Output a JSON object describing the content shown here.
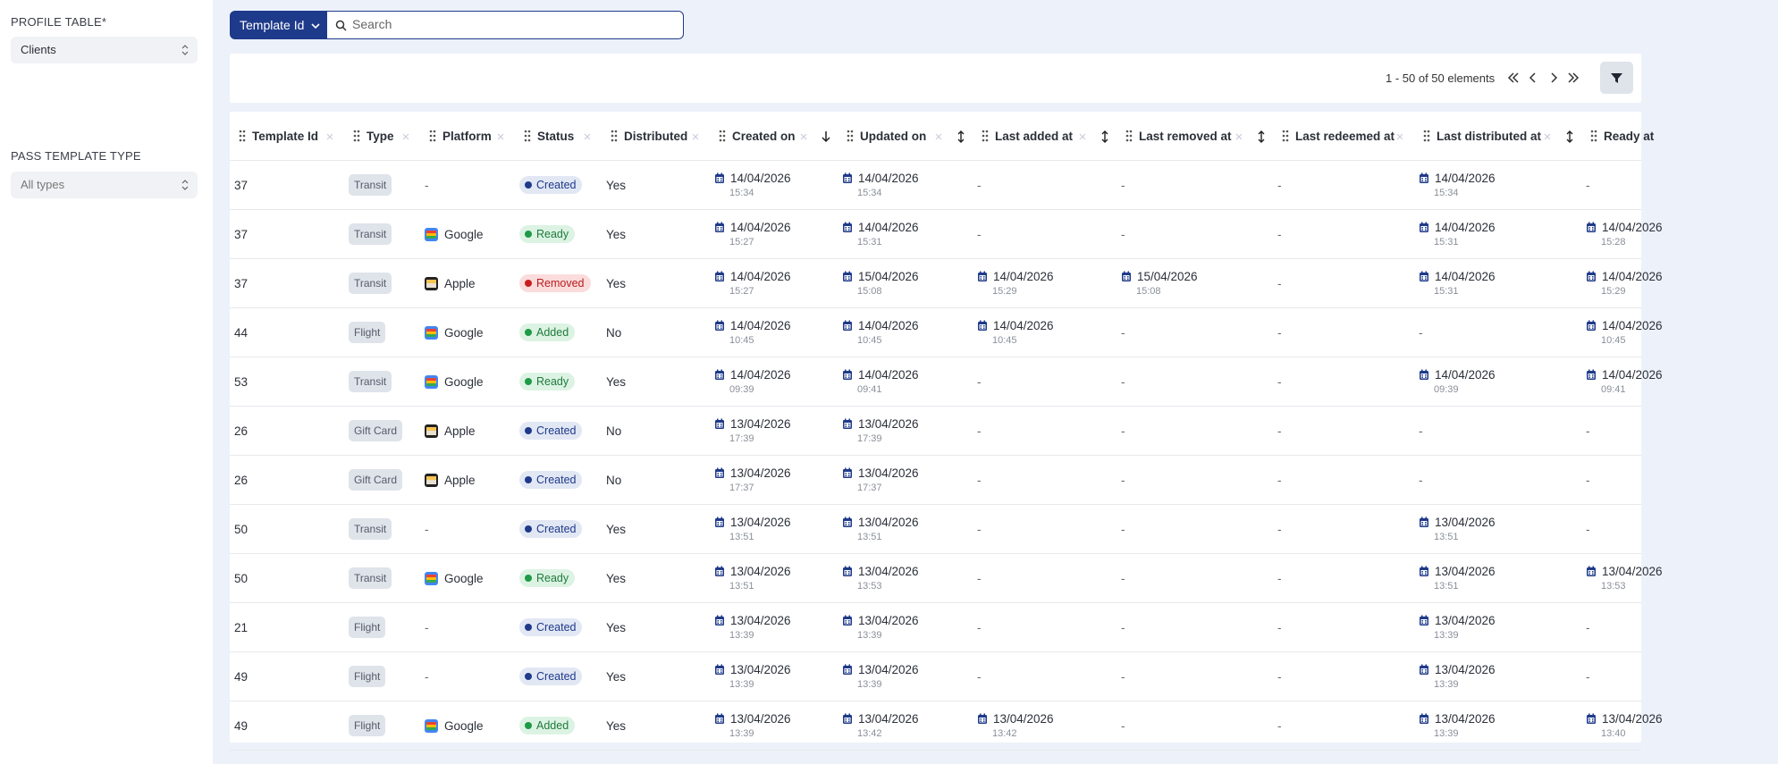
{
  "sidebar": {
    "profile_label": "PROFILE TABLE*",
    "profile_value": "Clients",
    "type_label": "PASS TEMPLATE TYPE",
    "type_value": "All types"
  },
  "toolbar": {
    "field": "Template Id",
    "search_placeholder": "Search",
    "pagination": "1 - 50 of 50 elements"
  },
  "table": {
    "columns": [
      "Template Id",
      "Type",
      "Platform",
      "Status",
      "Distributed",
      "Created on",
      "Updated on",
      "Last added at",
      "Last removed at",
      "Last redeemed at",
      "Last distributed at",
      "Ready at"
    ],
    "rows": [
      [
        "37",
        "Transit",
        "-",
        "Created",
        "Yes",
        {
          "date": "14/04/2026",
          "time": "15:34"
        },
        {
          "date": "14/04/2026",
          "time": "15:34"
        },
        "-",
        "-",
        "-",
        {
          "date": "14/04/2026",
          "time": "15:34"
        },
        "-"
      ],
      [
        "37",
        "Transit",
        "Google",
        "Ready",
        "Yes",
        {
          "date": "14/04/2026",
          "time": "15:27"
        },
        {
          "date": "14/04/2026",
          "time": "15:31"
        },
        "-",
        "-",
        "-",
        {
          "date": "14/04/2026",
          "time": "15:31"
        },
        {
          "date": "14/04/2026",
          "time": "15:28"
        }
      ],
      [
        "37",
        "Transit",
        "Apple",
        "Removed",
        "Yes",
        {
          "date": "14/04/2026",
          "time": "15:27"
        },
        {
          "date": "15/04/2026",
          "time": "15:08"
        },
        {
          "date": "14/04/2026",
          "time": "15:29"
        },
        {
          "date": "15/04/2026",
          "time": "15:08"
        },
        "-",
        {
          "date": "14/04/2026",
          "time": "15:31"
        },
        {
          "date": "14/04/2026",
          "time": "15:29"
        }
      ],
      [
        "44",
        "Flight",
        "Google",
        "Added",
        "No",
        {
          "date": "14/04/2026",
          "time": "10:45"
        },
        {
          "date": "14/04/2026",
          "time": "10:45"
        },
        {
          "date": "14/04/2026",
          "time": "10:45"
        },
        "-",
        "-",
        "-",
        {
          "date": "14/04/2026",
          "time": "10:45"
        }
      ],
      [
        "53",
        "Transit",
        "Google",
        "Ready",
        "Yes",
        {
          "date": "14/04/2026",
          "time": "09:39"
        },
        {
          "date": "14/04/2026",
          "time": "09:41"
        },
        "-",
        "-",
        "-",
        {
          "date": "14/04/2026",
          "time": "09:39"
        },
        {
          "date": "14/04/2026",
          "time": "09:41"
        }
      ],
      [
        "26",
        "Gift Card",
        "Apple",
        "Created",
        "No",
        {
          "date": "13/04/2026",
          "time": "17:39"
        },
        {
          "date": "13/04/2026",
          "time": "17:39"
        },
        "-",
        "-",
        "-",
        "-",
        "-"
      ],
      [
        "26",
        "Gift Card",
        "Apple",
        "Created",
        "No",
        {
          "date": "13/04/2026",
          "time": "17:37"
        },
        {
          "date": "13/04/2026",
          "time": "17:37"
        },
        "-",
        "-",
        "-",
        "-",
        "-"
      ],
      [
        "50",
        "Transit",
        "-",
        "Created",
        "Yes",
        {
          "date": "13/04/2026",
          "time": "13:51"
        },
        {
          "date": "13/04/2026",
          "time": "13:51"
        },
        "-",
        "-",
        "-",
        {
          "date": "13/04/2026",
          "time": "13:51"
        },
        "-"
      ],
      [
        "50",
        "Transit",
        "Google",
        "Ready",
        "Yes",
        {
          "date": "13/04/2026",
          "time": "13:51"
        },
        {
          "date": "13/04/2026",
          "time": "13:53"
        },
        "-",
        "-",
        "-",
        {
          "date": "13/04/2026",
          "time": "13:51"
        },
        {
          "date": "13/04/2026",
          "time": "13:53"
        }
      ],
      [
        "21",
        "Flight",
        "-",
        "Created",
        "Yes",
        {
          "date": "13/04/2026",
          "time": "13:39"
        },
        {
          "date": "13/04/2026",
          "time": "13:39"
        },
        "-",
        "-",
        "-",
        {
          "date": "13/04/2026",
          "time": "13:39"
        },
        "-"
      ],
      [
        "49",
        "Flight",
        "-",
        "Created",
        "Yes",
        {
          "date": "13/04/2026",
          "time": "13:39"
        },
        {
          "date": "13/04/2026",
          "time": "13:39"
        },
        "-",
        "-",
        "-",
        {
          "date": "13/04/2026",
          "time": "13:39"
        },
        "-"
      ],
      [
        "49",
        "Flight",
        "Google",
        "Added",
        "Yes",
        {
          "date": "13/04/2026",
          "time": "13:39"
        },
        {
          "date": "13/04/2026",
          "time": "13:42"
        },
        {
          "date": "13/04/2026",
          "time": "13:42"
        },
        "-",
        "-",
        {
          "date": "13/04/2026",
          "time": "13:39"
        },
        {
          "date": "13/04/2026",
          "time": "13:40"
        }
      ]
    ]
  }
}
